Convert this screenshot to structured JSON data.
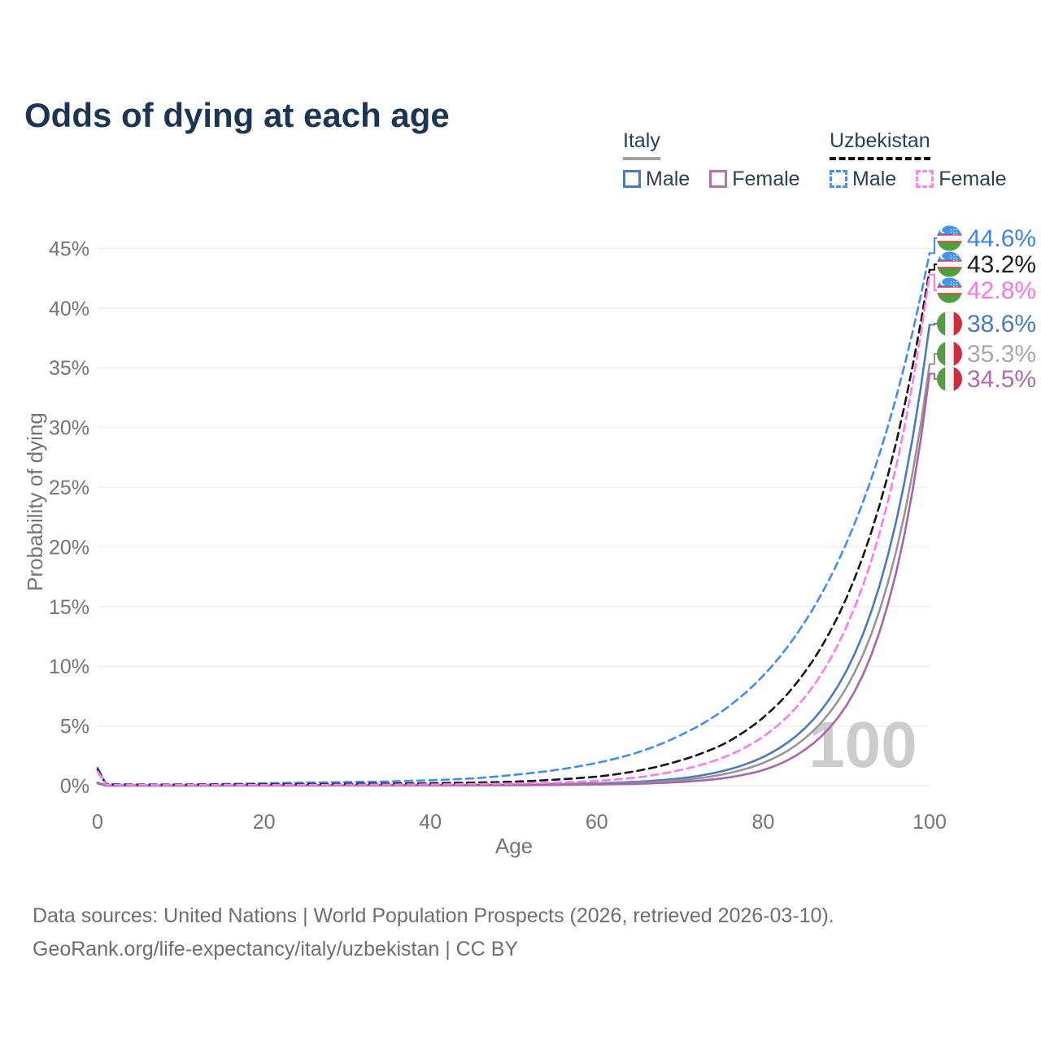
{
  "page": {
    "title": "Odds of dying at each age"
  },
  "legend": {
    "groups": [
      {
        "id": "italy",
        "label": "Italy",
        "line_style": "solid",
        "underline_color": "#a3a3a3",
        "items": [
          {
            "label": "Male",
            "color": "#4a7bbd"
          },
          {
            "label": "Female",
            "color": "#b273af"
          }
        ]
      },
      {
        "id": "uzbekistan",
        "label": "Uzbekistan",
        "line_style": "dashed",
        "underline_color": "#111111",
        "items": [
          {
            "label": "Male",
            "color": "#4b8ff2"
          },
          {
            "label": "Female",
            "color": "#ff85ec"
          }
        ]
      }
    ]
  },
  "chart_data": {
    "type": "line",
    "title": "Odds of dying at each age",
    "xlabel": "Age",
    "ylabel": "Probability of dying",
    "xlim": [
      0,
      100
    ],
    "ylim": [
      0,
      46
    ],
    "x_ticks": [
      0,
      20,
      40,
      60,
      80,
      100
    ],
    "x_tick_labels": [
      "0",
      "20",
      "40",
      "60",
      "80",
      "100"
    ],
    "y_ticks": [
      0,
      5,
      10,
      15,
      20,
      25,
      30,
      35,
      40,
      45
    ],
    "y_tick_labels": [
      "0%",
      "5%",
      "10%",
      "15%",
      "20%",
      "25%",
      "30%",
      "35%",
      "40%",
      "45%"
    ],
    "grid": "horizontal-only",
    "legend_position": "top-right",
    "hover_age_watermark": "100",
    "series": [
      {
        "name": "Uzbekistan — Male",
        "country": "Uzbekistan",
        "sex": "Male",
        "line": "dashed",
        "color": "#3f8df6",
        "label_color": "#3c82f2",
        "flag": "uzbekistan",
        "end_value_label": "44.6%",
        "points": [
          [
            0,
            1.5
          ],
          [
            1,
            0.15
          ],
          [
            5,
            0.1
          ],
          [
            10,
            0.1
          ],
          [
            15,
            0.13
          ],
          [
            20,
            0.2
          ],
          [
            25,
            0.25
          ],
          [
            30,
            0.3
          ],
          [
            35,
            0.35
          ],
          [
            40,
            0.45
          ],
          [
            45,
            0.6
          ],
          [
            50,
            0.9
          ],
          [
            55,
            1.3
          ],
          [
            60,
            1.9
          ],
          [
            65,
            2.8
          ],
          [
            70,
            4.2
          ],
          [
            75,
            6.2
          ],
          [
            80,
            9.2
          ],
          [
            85,
            13.7
          ],
          [
            90,
            20.3
          ],
          [
            95,
            30.1
          ],
          [
            100,
            44.6
          ]
        ]
      },
      {
        "name": "Uzbekistan — Both sexes",
        "country": "Uzbekistan",
        "sex": "Both",
        "line": "dashed",
        "color": "#161616",
        "label_color": "#1c1c1c",
        "flag": "uzbekistan",
        "end_value_label": "43.2%",
        "points": [
          [
            0,
            1.35
          ],
          [
            1,
            0.1
          ],
          [
            5,
            0.07
          ],
          [
            10,
            0.08
          ],
          [
            15,
            0.1
          ],
          [
            20,
            0.12
          ],
          [
            25,
            0.13
          ],
          [
            30,
            0.15
          ],
          [
            35,
            0.17
          ],
          [
            40,
            0.2
          ],
          [
            45,
            0.25
          ],
          [
            50,
            0.33
          ],
          [
            55,
            0.5
          ],
          [
            60,
            0.75
          ],
          [
            65,
            1.25
          ],
          [
            70,
            2.1
          ],
          [
            75,
            3.4
          ],
          [
            80,
            5.7
          ],
          [
            85,
            9.5
          ],
          [
            90,
            15.7
          ],
          [
            95,
            26.0
          ],
          [
            100,
            43.2
          ]
        ]
      },
      {
        "name": "Uzbekistan — Female",
        "country": "Uzbekistan",
        "sex": "Female",
        "line": "dashed",
        "color": "#ff79ee",
        "label_color": "#fc74e4",
        "flag": "uzbekistan",
        "end_value_label": "42.8%",
        "points": [
          [
            0,
            1.2
          ],
          [
            1,
            0.08
          ],
          [
            5,
            0.05
          ],
          [
            10,
            0.05
          ],
          [
            15,
            0.06
          ],
          [
            20,
            0.07
          ],
          [
            25,
            0.075
          ],
          [
            30,
            0.08
          ],
          [
            35,
            0.09
          ],
          [
            40,
            0.1
          ],
          [
            45,
            0.13
          ],
          [
            50,
            0.18
          ],
          [
            55,
            0.25
          ],
          [
            60,
            0.4
          ],
          [
            65,
            0.7
          ],
          [
            70,
            1.3
          ],
          [
            75,
            2.3
          ],
          [
            80,
            4.1
          ],
          [
            85,
            7.4
          ],
          [
            90,
            13.3
          ],
          [
            95,
            23.8
          ],
          [
            100,
            42.8
          ]
        ]
      },
      {
        "name": "Italy — Male",
        "country": "Italy",
        "sex": "Male",
        "line": "solid",
        "color": "#4a7bbd",
        "label_color": "#4a7bbd",
        "flag": "italy",
        "end_value_label": "38.6%",
        "points": [
          [
            0,
            0.25
          ],
          [
            1,
            0.02
          ],
          [
            5,
            0.01
          ],
          [
            10,
            0.01
          ],
          [
            15,
            0.02
          ],
          [
            20,
            0.03
          ],
          [
            25,
            0.03
          ],
          [
            30,
            0.03
          ],
          [
            35,
            0.035
          ],
          [
            40,
            0.04
          ],
          [
            45,
            0.05
          ],
          [
            50,
            0.08
          ],
          [
            55,
            0.12
          ],
          [
            60,
            0.2
          ],
          [
            65,
            0.33
          ],
          [
            70,
            0.6
          ],
          [
            75,
            1.2
          ],
          [
            80,
            2.4
          ],
          [
            85,
            4.8
          ],
          [
            90,
            9.6
          ],
          [
            95,
            19.3
          ],
          [
            100,
            38.6
          ]
        ]
      },
      {
        "name": "Italy — Both sexes",
        "country": "Italy",
        "sex": "Both",
        "line": "solid",
        "color": "#969696",
        "label_color": "#a9a9a9",
        "flag": "italy",
        "end_value_label": "35.3%",
        "points": [
          [
            0,
            0.22
          ],
          [
            1,
            0.015
          ],
          [
            5,
            0.01
          ],
          [
            10,
            0.01
          ],
          [
            15,
            0.015
          ],
          [
            20,
            0.02
          ],
          [
            25,
            0.022
          ],
          [
            30,
            0.025
          ],
          [
            35,
            0.028
          ],
          [
            40,
            0.03
          ],
          [
            45,
            0.04
          ],
          [
            50,
            0.06
          ],
          [
            55,
            0.09
          ],
          [
            60,
            0.15
          ],
          [
            65,
            0.24
          ],
          [
            70,
            0.45
          ],
          [
            75,
            0.92
          ],
          [
            80,
            1.9
          ],
          [
            85,
            3.95
          ],
          [
            90,
            8.2
          ],
          [
            95,
            17.0
          ],
          [
            100,
            35.3
          ]
        ]
      },
      {
        "name": "Italy — Female",
        "country": "Italy",
        "sex": "Female",
        "line": "solid",
        "color": "#aa64a8",
        "label_color": "#ad6da8",
        "flag": "italy",
        "end_value_label": "34.5%",
        "points": [
          [
            0,
            0.2
          ],
          [
            1,
            0.01
          ],
          [
            5,
            0.008
          ],
          [
            10,
            0.008
          ],
          [
            15,
            0.01
          ],
          [
            20,
            0.015
          ],
          [
            25,
            0.017
          ],
          [
            30,
            0.02
          ],
          [
            35,
            0.022
          ],
          [
            40,
            0.025
          ],
          [
            45,
            0.03
          ],
          [
            50,
            0.04
          ],
          [
            55,
            0.06
          ],
          [
            60,
            0.1
          ],
          [
            65,
            0.16
          ],
          [
            70,
            0.3
          ],
          [
            75,
            0.6
          ],
          [
            80,
            1.3
          ],
          [
            85,
            3.0
          ],
          [
            90,
            6.7
          ],
          [
            95,
            15.2
          ],
          [
            100,
            34.5
          ]
        ]
      }
    ]
  },
  "footer": {
    "line1": "Data sources: United Nations | World Population Prospects (2026, retrieved 2026-03-10).",
    "line2": "GeoRank.org/life-expectancy/italy/uzbekistan | CC BY"
  }
}
